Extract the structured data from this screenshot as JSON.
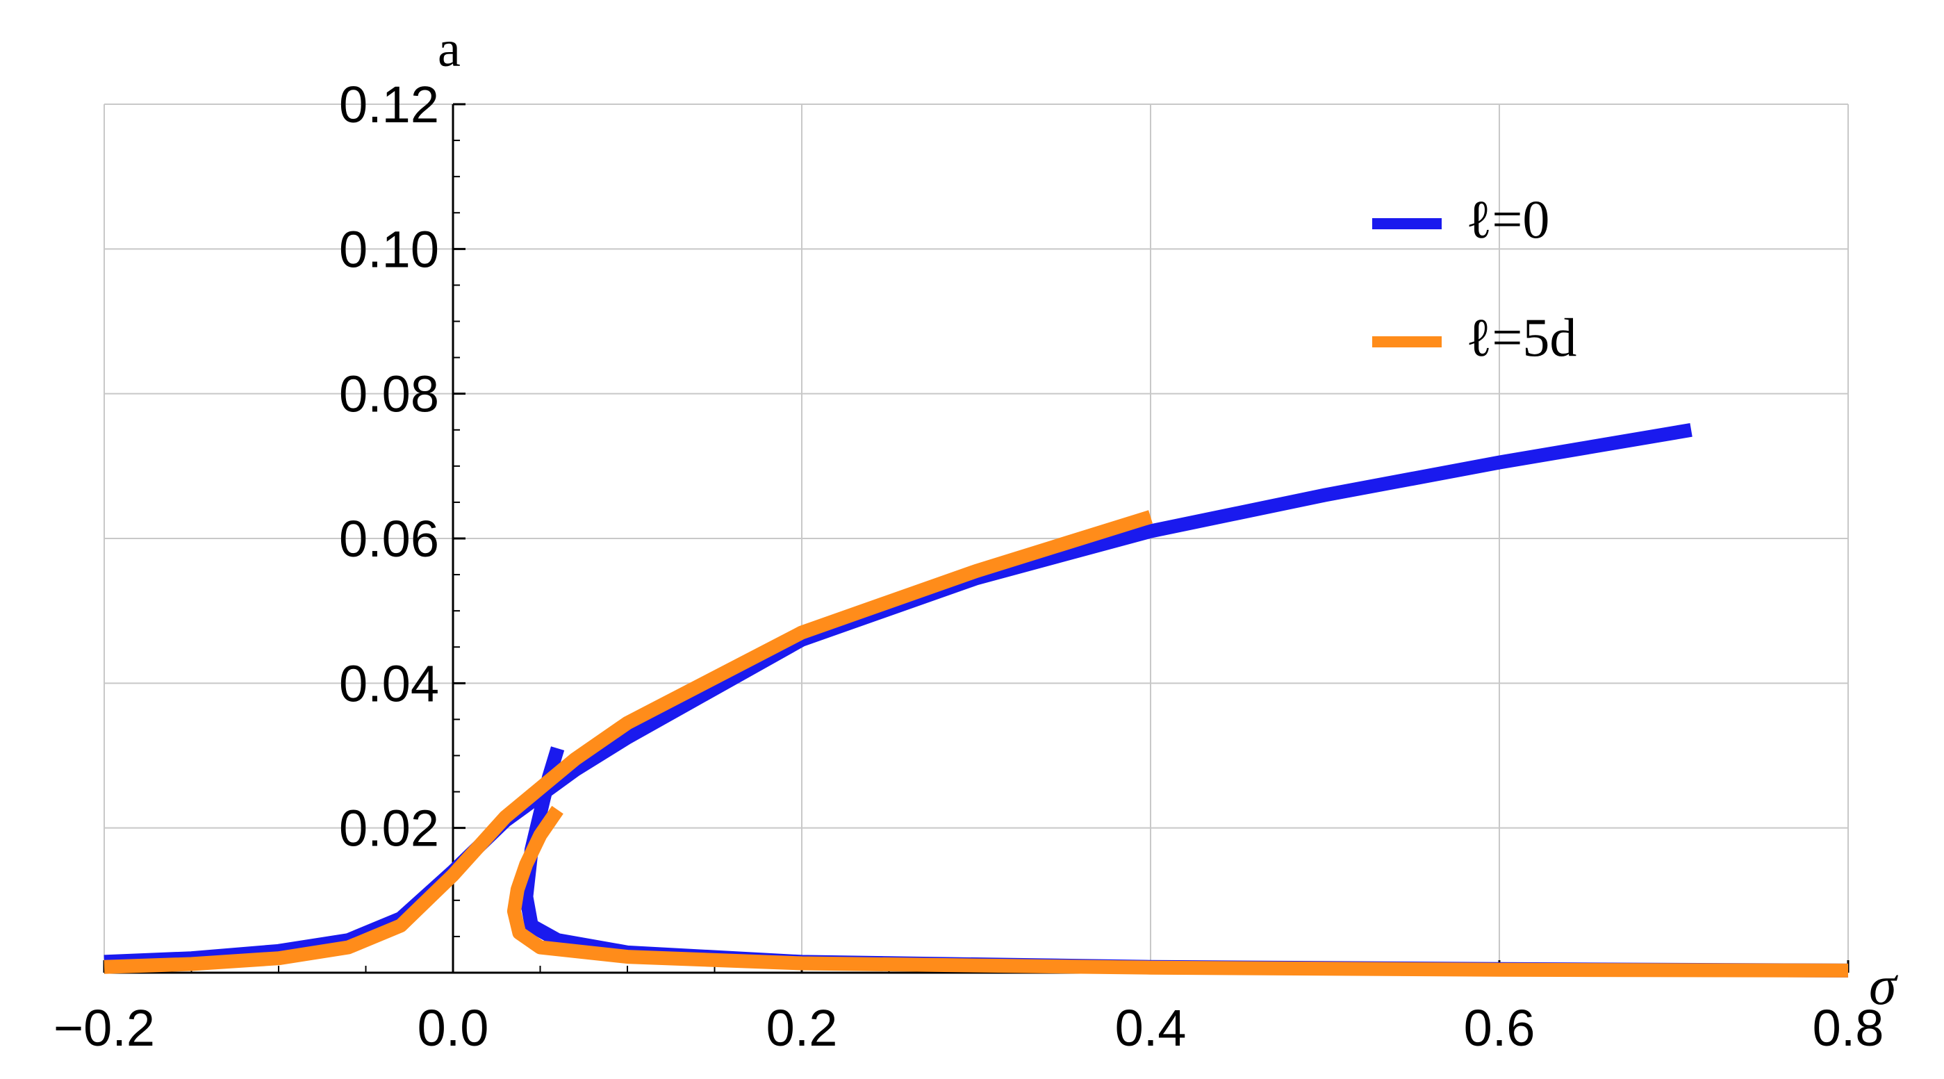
{
  "chart_data": {
    "type": "line",
    "xlabel": "σ",
    "ylabel": "a",
    "xlim": [
      -0.2,
      0.8
    ],
    "ylim": [
      0,
      0.12
    ],
    "xticks": [
      -0.2,
      0.0,
      0.2,
      0.4,
      0.6,
      0.8
    ],
    "xtick_labels": [
      "−0.2",
      "0.0",
      "0.2",
      "0.4",
      "0.6",
      "0.8"
    ],
    "yticks": [
      0.02,
      0.04,
      0.06,
      0.08,
      0.1,
      0.12
    ],
    "ytick_labels": [
      "0.02",
      "0.04",
      "0.06",
      "0.08",
      "0.10",
      "0.12"
    ],
    "grid": true,
    "legend_position": "top-right",
    "series": [
      {
        "name": "ℓ=0",
        "color": "#1a1aee",
        "x": [
          -0.2,
          -0.15,
          -0.1,
          -0.06,
          -0.03,
          0.0,
          0.03,
          0.07,
          0.1,
          0.2,
          0.3,
          0.4,
          0.5,
          0.6,
          0.71,
          0.06,
          0.055,
          0.05,
          0.045,
          0.042,
          0.045,
          0.06,
          0.1,
          0.2,
          0.4,
          0.6,
          0.8
        ],
        "y": [
          0.0015,
          0.002,
          0.003,
          0.0045,
          0.0075,
          0.014,
          0.021,
          0.028,
          0.0325,
          0.046,
          0.0545,
          0.061,
          0.066,
          0.0705,
          0.075,
          0.031,
          0.027,
          0.022,
          0.017,
          0.0105,
          0.0065,
          0.0045,
          0.0028,
          0.0015,
          0.0008,
          0.0005,
          0.0003
        ]
      },
      {
        "name": "ℓ=5d",
        "color": "#ff8c1a",
        "x": [
          -0.2,
          -0.15,
          -0.1,
          -0.06,
          -0.03,
          0.0,
          0.03,
          0.07,
          0.1,
          0.2,
          0.3,
          0.4,
          0.06,
          0.05,
          0.042,
          0.037,
          0.035,
          0.038,
          0.05,
          0.1,
          0.2,
          0.4,
          0.6,
          0.8
        ],
        "y": [
          0.0008,
          0.0012,
          0.002,
          0.0035,
          0.0065,
          0.0135,
          0.0215,
          0.0295,
          0.0345,
          0.047,
          0.0555,
          0.063,
          0.0225,
          0.019,
          0.015,
          0.0115,
          0.0085,
          0.0055,
          0.0035,
          0.0022,
          0.0013,
          0.0007,
          0.0004,
          0.0003
        ]
      }
    ]
  }
}
